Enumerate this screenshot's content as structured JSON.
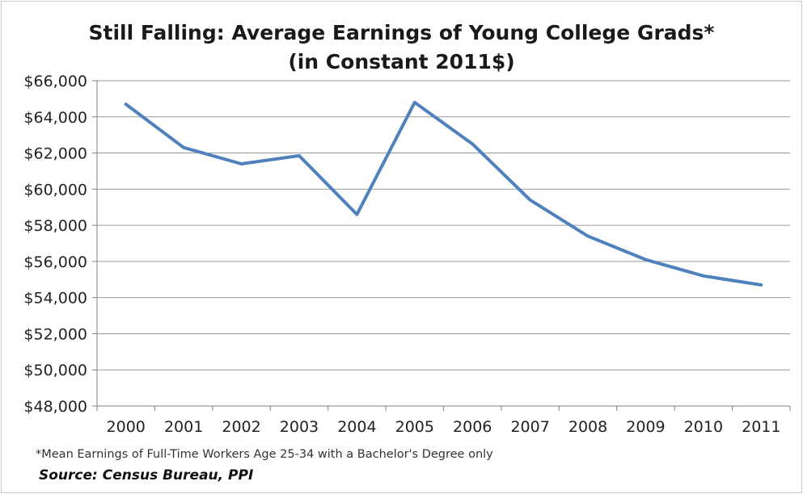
{
  "chart_data": {
    "type": "line",
    "title_line1": "Still Falling: Average Earnings of Young College Grads*",
    "title_line2": "(in Constant 2011$)",
    "xlabel": "",
    "ylabel": "",
    "ylim": [
      48000,
      66000
    ],
    "ytick_step": 2000,
    "ytick_labels": [
      "$48,000",
      "$50,000",
      "$52,000",
      "$54,000",
      "$56,000",
      "$58,000",
      "$60,000",
      "$62,000",
      "$64,000",
      "$66,000"
    ],
    "categories": [
      "2000",
      "2001",
      "2002",
      "2003",
      "2004",
      "2005",
      "2006",
      "2007",
      "2008",
      "2009",
      "2010",
      "2011"
    ],
    "series": [
      {
        "values": [
          64700,
          62300,
          61400,
          61850,
          58600,
          64800,
          62500,
          59400,
          57400,
          56100,
          55200,
          54700
        ]
      }
    ],
    "grid": true,
    "legend": "none",
    "line_color": "#4f81bd",
    "footnote": "*Mean Earnings of Full-Time Workers Age 25-34 with a Bachelor's Degree only",
    "source": "Source: Census Bureau, PPI"
  }
}
